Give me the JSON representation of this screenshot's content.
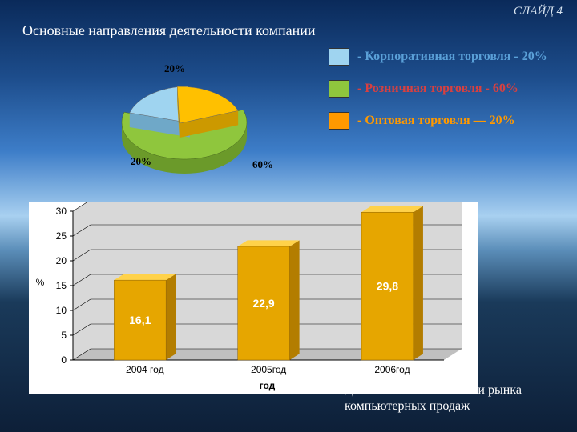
{
  "slide_number": "СЛАЙД 4",
  "title": "Основные направления деятельности компании",
  "pie": {
    "type": "pie",
    "slices": [
      {
        "label": "60%",
        "value": 60,
        "color": "#8fc63d",
        "side_color": "#6b9a2a"
      },
      {
        "label": "20%",
        "value": 20,
        "color": "#9fd4f0",
        "side_color": "#6fa8c8"
      },
      {
        "label": "20%",
        "value": 20,
        "color": "#ffc000",
        "side_color": "#cc9900"
      }
    ],
    "label_fontsize": 13,
    "label_color": "#000000"
  },
  "legend": {
    "items": [
      {
        "swatch": "#9fd4f0",
        "text": "- Корпоративная торговля - 20%",
        "color": "#5aa0d8"
      },
      {
        "swatch": "#8fc63d",
        "text": "- Розничная торговля - 60%",
        "color": "#d84040"
      },
      {
        "swatch": "#ff9900",
        "text": "- Оптовая торговля — 20%",
        "color": "#ff9900"
      }
    ],
    "fontsize": 16
  },
  "barchart": {
    "type": "bar",
    "categories": [
      "2004 год",
      "2005год",
      "2006год"
    ],
    "values": [
      16.1,
      22.9,
      29.8
    ],
    "value_labels": [
      "16,1",
      "22,9",
      "29,8"
    ],
    "bar_color_top": "#ffd24a",
    "bar_color_front": "#e6a600",
    "bar_color_side": "#b37d00",
    "value_label_color": "#ffffff",
    "value_label_fontsize": 14,
    "ylabel": "%",
    "xlabel": "год",
    "axis_fontsize": 12,
    "axis_color": "#000000",
    "ylim": [
      0,
      30
    ],
    "ytick_step": 5,
    "yticks": [
      0,
      5,
      10,
      15,
      20,
      25,
      30
    ],
    "grid_color": "#000000",
    "background_color": "#ffffff",
    "floor_color": "#c0c0c0",
    "wall_color": "#d8d8d8",
    "bar_width": 0.42
  },
  "bar_caption_l1": "Доля компании в емкости рынка",
  "bar_caption_l2": "компьютерных продаж"
}
